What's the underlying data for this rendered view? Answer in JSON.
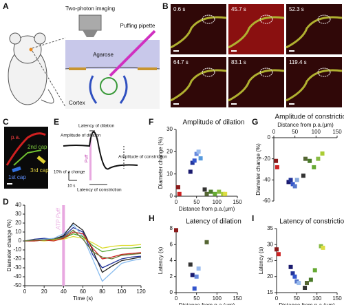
{
  "panel_labels": [
    "A",
    "B",
    "C",
    "D",
    "E",
    "F",
    "G",
    "H",
    "I"
  ],
  "schematic": {
    "imaging": "Two-photon imaging",
    "pipette": "Puffing pipette",
    "agarose": "Agarose",
    "cortex": "Cortex"
  },
  "timelapse": {
    "times": [
      "0.6 s",
      "45.7 s",
      "52.3 s",
      "64.7 s",
      "83.1 s",
      "119.4 s"
    ]
  },
  "micrograph": {
    "labels": [
      "p.a.",
      "1st cap",
      "2nd cap",
      "3rd cap"
    ]
  },
  "trace": {
    "latency_dilation": "Latency of dilation",
    "amplitude_dilation": "Amplitude of dilation",
    "amplitude_constriction": "Amplitude of constriction",
    "puff": "Puff",
    "latency_constriction": "Latency of constriction",
    "scale_y": "10% of ø change",
    "scale_x": "10 s"
  },
  "chart_data": [
    {
      "type": "line",
      "xlabel": "Time (s)",
      "ylabel": "Diameter change (%)",
      "x": [
        0,
        10,
        20,
        30,
        40,
        50,
        60,
        70,
        80,
        90,
        100,
        110,
        120
      ],
      "xlim": [
        0,
        120
      ],
      "xticks": [
        0,
        20,
        40,
        60,
        80,
        100,
        120
      ],
      "ylim": [
        -50,
        40
      ],
      "yticks": [
        -50,
        -40,
        -30,
        -20,
        -10,
        0,
        10,
        20,
        30,
        40
      ],
      "annotation": {
        "text": "ATP Puff",
        "x": 40,
        "color": "#e8a8e0"
      },
      "series": [
        {
          "color": "#223399",
          "values": [
            0,
            2,
            3,
            2,
            5,
            15,
            10,
            -15,
            -30,
            -25,
            -20,
            -18,
            -17
          ]
        },
        {
          "color": "#88bbee",
          "values": [
            0,
            1,
            2,
            3,
            8,
            18,
            5,
            -20,
            -45,
            -35,
            -25,
            -22,
            -20
          ]
        },
        {
          "color": "#222222",
          "values": [
            0,
            1,
            1,
            2,
            6,
            20,
            12,
            -10,
            -35,
            -28,
            -22,
            -20,
            -18
          ]
        },
        {
          "color": "#55aa33",
          "values": [
            0,
            0,
            1,
            1,
            3,
            8,
            5,
            -5,
            -12,
            -10,
            -8,
            -8,
            -7
          ]
        },
        {
          "color": "#dddd33",
          "values": [
            0,
            1,
            0,
            1,
            2,
            5,
            3,
            -2,
            -8,
            -6,
            -5,
            -5,
            -4
          ]
        },
        {
          "color": "#cc2222",
          "values": [
            0,
            0,
            1,
            0,
            3,
            10,
            8,
            -8,
            -20,
            -18,
            -15,
            -14,
            -13
          ]
        },
        {
          "color": "#667733",
          "values": [
            0,
            1,
            1,
            2,
            4,
            12,
            2,
            -12,
            -18,
            -20,
            -16,
            -15,
            -14
          ]
        }
      ]
    },
    {
      "type": "scatter",
      "title": "Amplitude of dilation",
      "xlabel": "Distance from p.a.(μm)",
      "ylabel": "Diameter change (%)",
      "xlim": [
        0,
        150
      ],
      "xticks": [
        0,
        50,
        100,
        150
      ],
      "ylim": [
        0,
        30
      ],
      "yticks": [
        0,
        10,
        20,
        30
      ],
      "x": [
        5,
        8,
        35,
        40,
        45,
        50,
        55,
        60,
        70,
        75,
        85,
        95,
        105,
        115,
        120
      ],
      "values": [
        4,
        1,
        11,
        15,
        16,
        19,
        20,
        17,
        3,
        1,
        2,
        1,
        2,
        1,
        1
      ],
      "colors": [
        "#8b1a1a",
        "#cc2222",
        "#1a1a6e",
        "#223399",
        "#3355cc",
        "#6688dd",
        "#99bbee",
        "#5599dd",
        "#333333",
        "#556633",
        "#4a7a2a",
        "#66aa33",
        "#88bb44",
        "#aacc33",
        "#dddd44"
      ]
    },
    {
      "type": "scatter",
      "title": "Amplitude of constriction",
      "xlabel": "Distance from p.a.(μm)",
      "ylabel": "Diameter change (%)",
      "x_axis_top": true,
      "xlim": [
        0,
        150
      ],
      "xticks": [
        0,
        50,
        100,
        150
      ],
      "ylim": [
        -60,
        0
      ],
      "yticks": [
        -60,
        -40,
        -20,
        0
      ],
      "x": [
        5,
        8,
        35,
        40,
        45,
        50,
        55,
        70,
        75,
        85,
        95,
        105,
        115
      ],
      "values": [
        -22,
        -28,
        -42,
        -40,
        -44,
        -46,
        -40,
        -36,
        -20,
        -22,
        -28,
        -20,
        -15
      ],
      "colors": [
        "#8b1a1a",
        "#cc2222",
        "#1a1a6e",
        "#223399",
        "#3355cc",
        "#5577cc",
        "#88aadd",
        "#333333",
        "#556633",
        "#4a7a2a",
        "#66aa33",
        "#88bb44",
        "#aacc33"
      ]
    },
    {
      "type": "scatter",
      "title": "Latency of dilation",
      "xlabel": "Distance from p.a.(μm)",
      "ylabel": "Latency (s)",
      "xlim": [
        0,
        150
      ],
      "xticks": [
        0,
        50,
        100,
        150
      ],
      "ylim": [
        0,
        8
      ],
      "yticks": [
        0,
        2,
        4,
        6,
        8
      ],
      "x": [
        0,
        35,
        40,
        45,
        50,
        55,
        75
      ],
      "values": [
        7.8,
        3.5,
        2.2,
        0.5,
        2,
        3,
        6.3
      ],
      "colors": [
        "#8b1a1a",
        "#333333",
        "#1a1a6e",
        "#3355cc",
        "#6688dd",
        "#99bbee",
        "#556633"
      ]
    },
    {
      "type": "scatter",
      "title": "Latency of constriction",
      "xlabel": "Distance from p.a.(μm)",
      "ylabel": "Latency (s)",
      "xlim": [
        0,
        150
      ],
      "xticks": [
        0,
        50,
        100,
        150
      ],
      "ylim": [
        15,
        35
      ],
      "yticks": [
        15,
        20,
        25,
        30,
        35
      ],
      "x": [
        0,
        5,
        35,
        40,
        45,
        50,
        55,
        70,
        75,
        85,
        95,
        110,
        115
      ],
      "values": [
        28.5,
        27,
        23,
        21,
        20,
        18.5,
        18,
        16.5,
        18,
        19,
        22,
        29.5,
        29
      ],
      "colors": [
        "#8b1a1a",
        "#cc2222",
        "#1a1a6e",
        "#223399",
        "#3355cc",
        "#5577cc",
        "#99bbee",
        "#333333",
        "#556633",
        "#4a7a2a",
        "#66aa33",
        "#88bb44",
        "#dddd44"
      ]
    }
  ]
}
